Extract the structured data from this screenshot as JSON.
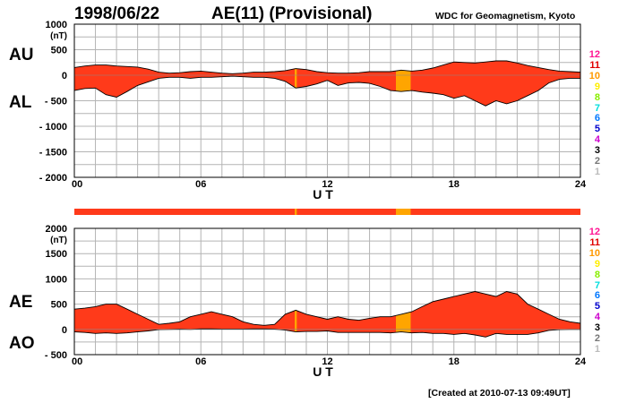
{
  "header": {
    "date": "1998/06/22",
    "index_title": "AE(11) (Provisional)",
    "source": "WDC for Geomagnetism, Kyoto"
  },
  "footer": {
    "created": "[Created at 2010-07-13 09:49UT]"
  },
  "colors": {
    "fill": "#ff3a1a",
    "fill_partial": "#ffa500",
    "grid": "#b4b4b4",
    "outline": "#000000"
  },
  "station_scale": {
    "labels": [
      "12",
      "11",
      "10",
      "9",
      "8",
      "7",
      "6",
      "5",
      "4",
      "3",
      "2",
      "1"
    ],
    "colors": [
      "#ff1493",
      "#e00000",
      "#ff9900",
      "#ffee00",
      "#88ee00",
      "#00dddd",
      "#0077ff",
      "#0000cc",
      "#cc00cc",
      "#000000",
      "#777777",
      "#bbbbbb"
    ]
  },
  "chart_data": [
    {
      "type": "area",
      "panel": "AU/AL",
      "series_labels": [
        "AU",
        "AL"
      ],
      "xlabel": "U T",
      "ylabel_unit": "(nT)",
      "xlim": [
        0,
        24
      ],
      "ylim": [
        -2000,
        1000
      ],
      "x_ticks": [
        "00",
        "06",
        "12",
        "18",
        "24"
      ],
      "y_ticks": [
        "1000",
        "500",
        "0",
        "- 500",
        "- 1000",
        "- 1500",
        "- 2000"
      ],
      "y_tick_values": [
        1000,
        500,
        0,
        -500,
        -1000,
        -1500,
        -2000
      ],
      "grid": true,
      "partial_coverage_hours": [
        [
          10.45,
          10.55
        ],
        [
          15.25,
          15.95
        ]
      ],
      "x": [
        0,
        0.5,
        1,
        1.5,
        2,
        2.5,
        3,
        3.5,
        4,
        4.5,
        5,
        5.5,
        6,
        6.5,
        7,
        7.5,
        8,
        8.5,
        9,
        9.5,
        10,
        10.5,
        11,
        11.5,
        12,
        12.5,
        13,
        13.5,
        14,
        14.5,
        15,
        15.5,
        16,
        16.5,
        17,
        17.5,
        18,
        18.5,
        19,
        19.5,
        20,
        20.5,
        21,
        21.5,
        22,
        22.5,
        23,
        23.5,
        24
      ],
      "series": [
        {
          "name": "AU",
          "values": [
            150,
            180,
            200,
            200,
            180,
            170,
            160,
            120,
            60,
            40,
            50,
            70,
            80,
            60,
            40,
            30,
            40,
            60,
            60,
            70,
            90,
            130,
            110,
            70,
            50,
            40,
            40,
            50,
            70,
            70,
            70,
            100,
            80,
            100,
            140,
            200,
            260,
            250,
            240,
            260,
            280,
            280,
            240,
            190,
            150,
            110,
            80,
            70,
            60
          ]
        },
        {
          "name": "AL",
          "values": [
            -300,
            -260,
            -250,
            -380,
            -430,
            -320,
            -200,
            -130,
            -60,
            -40,
            -40,
            -60,
            -40,
            -40,
            -30,
            -20,
            -30,
            -40,
            -40,
            -60,
            -120,
            -250,
            -220,
            -170,
            -100,
            -200,
            -150,
            -140,
            -160,
            -220,
            -300,
            -320,
            -300,
            -330,
            -350,
            -380,
            -450,
            -400,
            -500,
            -600,
            -500,
            -560,
            -500,
            -400,
            -300,
            -150,
            -80,
            -60,
            -60
          ]
        }
      ]
    },
    {
      "type": "area",
      "panel": "AE/AO",
      "series_labels": [
        "AE",
        "AO"
      ],
      "xlabel": "U T",
      "ylabel_unit": "(nT)",
      "xlim": [
        0,
        24
      ],
      "ylim": [
        -500,
        2000
      ],
      "x_ticks": [
        "00",
        "06",
        "12",
        "18",
        "24"
      ],
      "y_ticks": [
        "2000",
        "1500",
        "1000",
        "500",
        "0",
        "- 500"
      ],
      "y_tick_values": [
        2000,
        1500,
        1000,
        500,
        0,
        -500
      ],
      "grid": true,
      "partial_coverage_hours": [
        [
          10.45,
          10.55
        ],
        [
          15.25,
          15.95
        ]
      ],
      "x": [
        0,
        0.5,
        1,
        1.5,
        2,
        2.5,
        3,
        3.5,
        4,
        4.5,
        5,
        5.5,
        6,
        6.5,
        7,
        7.5,
        8,
        8.5,
        9,
        9.5,
        10,
        10.5,
        11,
        11.5,
        12,
        12.5,
        13,
        13.5,
        14,
        14.5,
        15,
        15.5,
        16,
        16.5,
        17,
        17.5,
        18,
        18.5,
        19,
        19.5,
        20,
        20.5,
        21,
        21.5,
        22,
        22.5,
        23,
        23.5,
        24
      ],
      "series": [
        {
          "name": "AE",
          "values": [
            400,
            420,
            450,
            500,
            500,
            400,
            300,
            200,
            100,
            120,
            150,
            250,
            300,
            350,
            300,
            250,
            150,
            100,
            80,
            100,
            300,
            380,
            300,
            250,
            200,
            250,
            200,
            180,
            220,
            250,
            250,
            300,
            350,
            450,
            550,
            600,
            650,
            700,
            750,
            700,
            650,
            750,
            700,
            500,
            400,
            300,
            200,
            150,
            120
          ]
        },
        {
          "name": "AO",
          "values": [
            -50,
            -60,
            -80,
            -70,
            -80,
            -70,
            -50,
            -30,
            -5,
            0,
            5,
            0,
            10,
            10,
            5,
            5,
            5,
            10,
            10,
            5,
            -15,
            -50,
            -40,
            -40,
            -30,
            -60,
            -60,
            -60,
            -60,
            -60,
            -70,
            -50,
            -70,
            -60,
            -80,
            -80,
            -100,
            -80,
            -110,
            -150,
            -80,
            -100,
            -100,
            -100,
            -70,
            -20,
            -5,
            0,
            0
          ]
        }
      ]
    }
  ]
}
